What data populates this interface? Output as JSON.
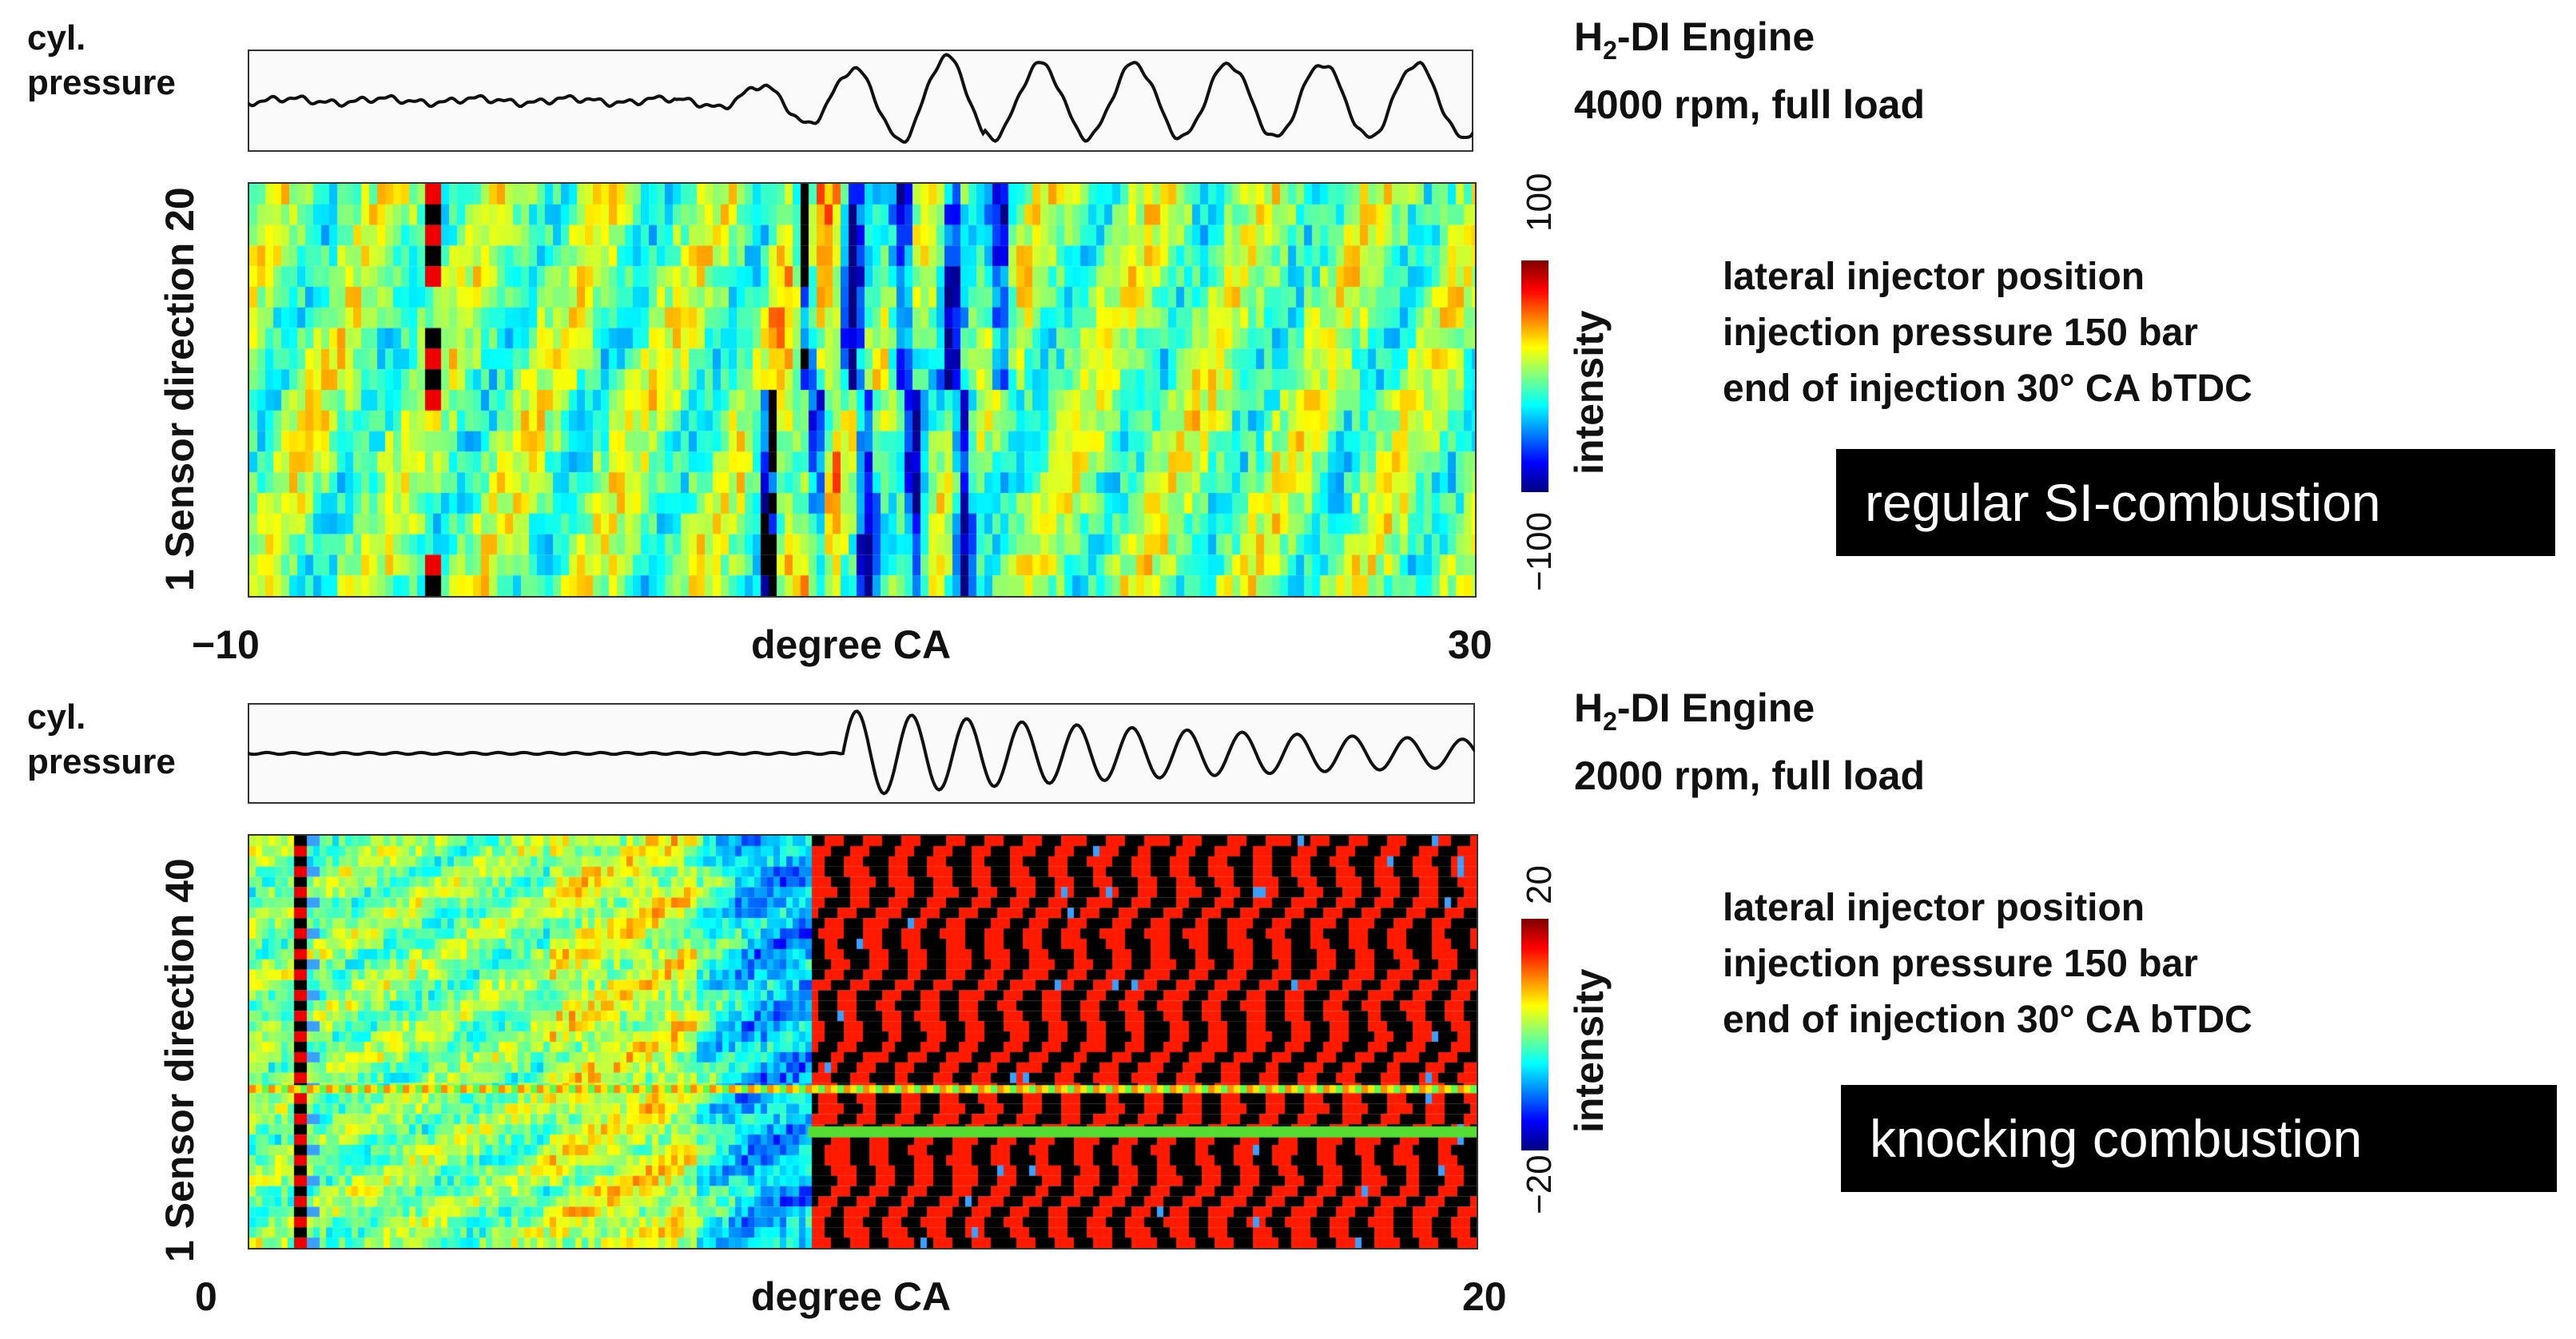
{
  "chart_data": [
    {
      "type": "heatmap",
      "engine": "H",
      "engine_sub": "2",
      "engine_rest": "-DI Engine",
      "operating_point": "4000 rpm, full load",
      "trace_label_line1": "cyl.",
      "trace_label_line2": "pressure",
      "ylabel": "1 Sensor direction 20",
      "xlabel": "degree CA",
      "x_ticks": [
        "−10",
        "30"
      ],
      "xlim": [
        -10,
        30
      ],
      "sensors": [
        1,
        20
      ],
      "colorbar_label": "intensity",
      "colorbar_range": [
        -100,
        100
      ],
      "colorbar_ticks": [
        "−100",
        "100"
      ],
      "conditions": [
        "lateral injector position",
        "injection pressure 150 bar",
        "end of injection 30° CA bTDC"
      ],
      "combustion_label": "regular SI-combustion"
    },
    {
      "type": "heatmap",
      "engine": "H",
      "engine_sub": "2",
      "engine_rest": "-DI Engine",
      "operating_point": "2000 rpm, full load",
      "trace_label_line1": "cyl.",
      "trace_label_line2": "pressure",
      "ylabel": "1 Sensor direction 40",
      "xlabel": "degree CA",
      "x_ticks": [
        "0",
        "20"
      ],
      "xlim": [
        0,
        20
      ],
      "sensors": [
        1,
        40
      ],
      "colorbar_label": "intensity",
      "colorbar_range": [
        -20,
        20
      ],
      "colorbar_ticks": [
        "−20",
        "20"
      ],
      "conditions": [
        "lateral injector position",
        "injection pressure 150 bar",
        "end of injection 30° CA bTDC"
      ],
      "combustion_label": "knocking combustion"
    }
  ]
}
